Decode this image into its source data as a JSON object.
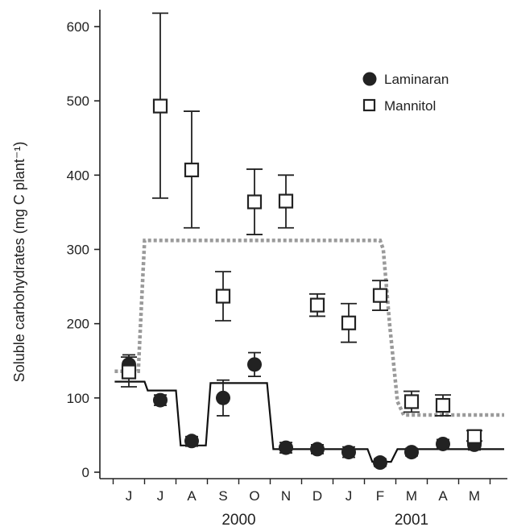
{
  "chart_data": {
    "type": "scatter",
    "ylabel": "Soluble carbohydrates (mg C plant⁻¹)",
    "ylim": [
      0,
      650
    ],
    "yticks": [
      0,
      100,
      200,
      300,
      400,
      500,
      600
    ],
    "months": [
      "J",
      "J",
      "A",
      "S",
      "O",
      "N",
      "D",
      "J",
      "F",
      "M",
      "A",
      "M"
    ],
    "years": [
      {
        "label": "2000",
        "center_month": 3.5
      },
      {
        "label": "2001",
        "center_month": 9
      }
    ],
    "legend": {
      "position": "top-right"
    },
    "series": [
      {
        "name": "Laminaran",
        "marker": "filled-circle",
        "color": "#222222",
        "x": [
          0,
          1,
          2,
          3,
          4,
          5,
          6,
          7,
          8,
          9,
          10,
          11
        ],
        "y": [
          145,
          97,
          42,
          100,
          145,
          33,
          31,
          27,
          13,
          27,
          38,
          37
        ],
        "err_low": [
          130,
          90,
          35,
          76,
          129,
          26,
          25,
          20,
          8,
          22,
          32,
          30
        ],
        "err_high": [
          158,
          104,
          48,
          124,
          161,
          40,
          37,
          34,
          18,
          32,
          44,
          44
        ]
      },
      {
        "name": "Mannitol",
        "marker": "open-square",
        "color": "#222222",
        "x": [
          0,
          1,
          2,
          3,
          4,
          5,
          6,
          7,
          8,
          9,
          10,
          11
        ],
        "y": [
          135,
          493,
          407,
          237,
          364,
          365,
          225,
          201,
          238,
          95,
          90,
          48
        ],
        "err_low": [
          115,
          369,
          329,
          204,
          320,
          329,
          210,
          175,
          218,
          81,
          76,
          42
        ],
        "err_high": [
          155,
          618,
          486,
          270,
          408,
          400,
          240,
          227,
          258,
          109,
          104,
          56
        ]
      }
    ],
    "lines": [
      {
        "name": "Laminaran trend",
        "style": "solid",
        "color": "#111111",
        "points": [
          [
            -0.45,
            122
          ],
          [
            0.5,
            122
          ],
          [
            0.6,
            110
          ],
          [
            1.5,
            110
          ],
          [
            1.65,
            36
          ],
          [
            2.45,
            36
          ],
          [
            2.6,
            120
          ],
          [
            4.4,
            120
          ],
          [
            4.6,
            31
          ],
          [
            7.6,
            31
          ],
          [
            7.75,
            14
          ],
          [
            8.35,
            14
          ],
          [
            8.55,
            31
          ],
          [
            11.95,
            31
          ]
        ]
      },
      {
        "name": "Mannitol trend",
        "style": "dotted",
        "color": "#9a9a9a",
        "points": [
          [
            -0.45,
            136
          ],
          [
            0.3,
            136
          ],
          [
            0.5,
            312
          ],
          [
            8.0,
            312
          ],
          [
            8.1,
            300
          ],
          [
            8.3,
            200
          ],
          [
            8.55,
            95
          ],
          [
            8.75,
            77
          ],
          [
            11.95,
            77
          ]
        ]
      }
    ]
  }
}
